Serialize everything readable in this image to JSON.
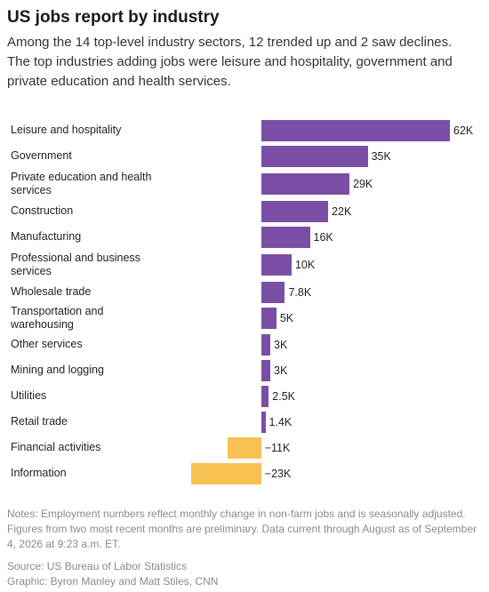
{
  "chart_data": {
    "type": "bar",
    "orientation": "horizontal",
    "title": "US jobs report by industry",
    "subtitle": "Among the 14 top-level industry sectors, 12 trended up and 2 saw declines. The top industries adding jobs were leisure and hospitality, government and private education and health services.",
    "categories": [
      "Leisure and hospitality",
      "Government",
      "Private education and health services",
      "Construction",
      "Manufacturing",
      "Professional and business services",
      "Wholesale trade",
      "Transportation and warehousing",
      "Other services",
      "Mining and logging",
      "Utilities",
      "Retail trade",
      "Financial activities",
      "Information"
    ],
    "values": [
      62000,
      35000,
      29000,
      22000,
      16000,
      10000,
      7800,
      5000,
      3000,
      3000,
      2500,
      1400,
      -11000,
      -23000
    ],
    "value_labels": [
      "62K",
      "35K",
      "29K",
      "22K",
      "16K",
      "10K",
      "7.8K",
      "5K",
      "3K",
      "3K",
      "2.5K",
      "1.4K",
      "−11K",
      "−23K"
    ],
    "color": "#7b4ea6",
    "negative_color": "#f8c153",
    "notes": "Notes: Employment numbers reflect monthly change in non-farm jobs and is seasonally adjusted. Figures from two most recent months are preliminary. Data current through August as of September 4, 2026 at 9:23 a.m. ET.",
    "source": "Source: US Bureau of Labor Statistics",
    "credit": "Graphic: Byron Manley and Matt Stiles, CNN"
  }
}
